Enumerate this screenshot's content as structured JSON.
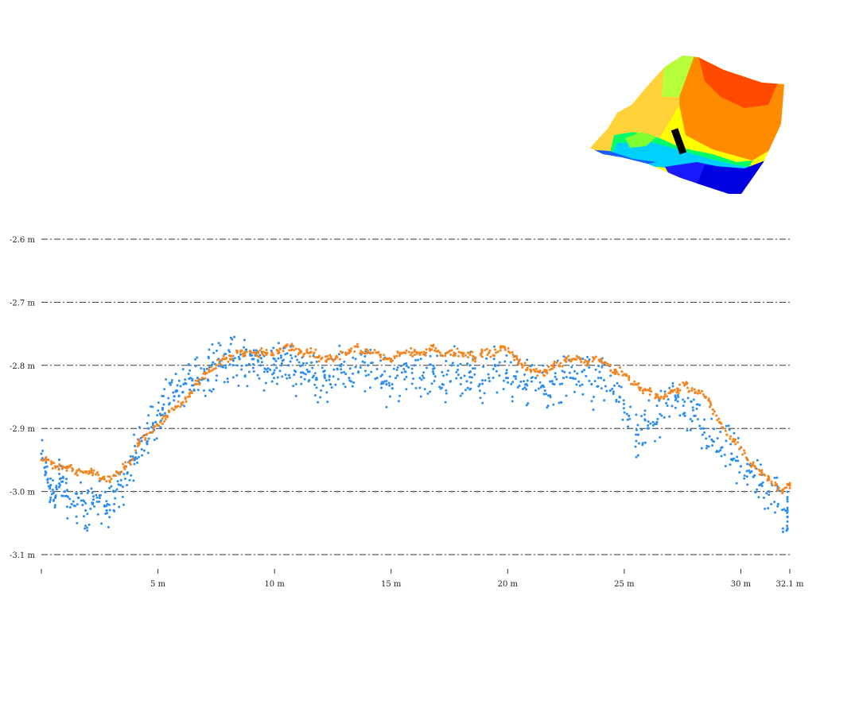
{
  "chart_data": {
    "type": "scatter",
    "x_unit": "m",
    "y_unit": "m",
    "xlim": [
      0,
      32.1
    ],
    "ylim": [
      -3.1,
      -2.6
    ],
    "x_ticks": [
      {
        "value": 5,
        "label": "5 m"
      },
      {
        "value": 10,
        "label": "10 m"
      },
      {
        "value": 15,
        "label": "15 m"
      },
      {
        "value": 20,
        "label": "20 m"
      },
      {
        "value": 25,
        "label": "25 m"
      },
      {
        "value": 30,
        "label": "30 m"
      },
      {
        "value": 32.1,
        "label": "32.1 m"
      }
    ],
    "y_ticks": [
      {
        "value": -2.6,
        "label": "-2.6 m"
      },
      {
        "value": -2.7,
        "label": "-2.7 m"
      },
      {
        "value": -2.8,
        "label": "-2.8 m"
      },
      {
        "value": -2.9,
        "label": "-2.9 m"
      },
      {
        "value": -3.0,
        "label": "-3.0 m"
      },
      {
        "value": -3.1,
        "label": "-3.1 m"
      }
    ],
    "grid": true,
    "series": [
      {
        "color": "#2a8ef0",
        "x": [
          0.0,
          0.2,
          0.4,
          0.6,
          0.8,
          1.0,
          1.3,
          1.6,
          1.9,
          2.2,
          2.5,
          2.8,
          3.1,
          3.4,
          3.7,
          4.0,
          4.3,
          4.6,
          4.9,
          5.2,
          5.5,
          5.8,
          6.1,
          6.4,
          6.7,
          7.0,
          7.3,
          7.6,
          7.9,
          8.2,
          8.5,
          8.8,
          9.1,
          9.4,
          9.7,
          10.0,
          10.3,
          10.6,
          10.9,
          11.2,
          11.5,
          11.8,
          12.1,
          12.4,
          12.8,
          13.2,
          13.6,
          14.0,
          14.4,
          14.8,
          15.2,
          15.6,
          16.0,
          16.4,
          16.8,
          17.2,
          17.6,
          18.0,
          18.4,
          18.8,
          19.2,
          19.6,
          20.0,
          20.4,
          20.8,
          21.2,
          21.6,
          22.0,
          22.4,
          22.8,
          23.2,
          23.6,
          24.0,
          24.4,
          24.8,
          25.2,
          25.6,
          26.0,
          26.4,
          26.8,
          27.2,
          27.6,
          28.0,
          28.4,
          28.8,
          29.2,
          29.6,
          30.0,
          30.4,
          30.8,
          31.2,
          31.6,
          32.0
        ],
        "y": [
          -2.94,
          -2.97,
          -2.99,
          -3.01,
          -2.98,
          -3.0,
          -3.02,
          -3.01,
          -3.03,
          -3.02,
          -3.01,
          -3.03,
          -3.0,
          -2.99,
          -2.97,
          -2.95,
          -2.92,
          -2.9,
          -2.89,
          -2.87,
          -2.86,
          -2.84,
          -2.83,
          -2.82,
          -2.82,
          -2.81,
          -2.8,
          -2.79,
          -2.8,
          -2.79,
          -2.79,
          -2.8,
          -2.79,
          -2.8,
          -2.81,
          -2.79,
          -2.8,
          -2.8,
          -2.81,
          -2.8,
          -2.81,
          -2.82,
          -2.81,
          -2.83,
          -2.8,
          -2.82,
          -2.81,
          -2.8,
          -2.82,
          -2.83,
          -2.82,
          -2.81,
          -2.8,
          -2.82,
          -2.81,
          -2.83,
          -2.8,
          -2.82,
          -2.81,
          -2.83,
          -2.82,
          -2.8,
          -2.82,
          -2.81,
          -2.83,
          -2.82,
          -2.84,
          -2.83,
          -2.82,
          -2.82,
          -2.81,
          -2.83,
          -2.82,
          -2.84,
          -2.85,
          -2.88,
          -2.91,
          -2.9,
          -2.89,
          -2.86,
          -2.85,
          -2.88,
          -2.88,
          -2.9,
          -2.92,
          -2.93,
          -2.94,
          -2.96,
          -2.97,
          -2.99,
          -3.0,
          -3.02,
          -3.04
        ]
      },
      {
        "color": "#f5841f",
        "x": [
          0.0,
          0.3,
          0.6,
          0.9,
          1.2,
          1.5,
          1.8,
          2.1,
          2.4,
          2.7,
          3.0,
          3.3,
          3.6,
          3.9,
          4.2,
          4.5,
          4.8,
          5.1,
          5.4,
          5.7,
          6.0,
          6.3,
          6.6,
          6.9,
          7.2,
          7.5,
          7.8,
          8.1,
          8.4,
          8.7,
          9.0,
          9.3,
          9.6,
          9.9,
          10.2,
          10.5,
          10.8,
          11.1,
          11.4,
          11.7,
          12.0,
          12.3,
          12.6,
          12.9,
          13.2,
          13.5,
          13.8,
          14.1,
          14.4,
          14.7,
          15.0,
          15.3,
          15.6,
          15.9,
          16.2,
          16.5,
          16.8,
          17.1,
          17.4,
          17.7,
          18.0,
          18.3,
          18.6,
          18.9,
          19.2,
          19.5,
          19.8,
          20.1,
          20.4,
          20.7,
          21.0,
          21.3,
          21.6,
          21.9,
          22.2,
          22.5,
          22.8,
          23.1,
          23.4,
          23.7,
          24.0,
          24.3,
          24.6,
          24.9,
          25.2,
          25.5,
          25.8,
          26.1,
          26.4,
          26.7,
          27.0,
          27.3,
          27.6,
          27.9,
          28.2,
          28.5,
          28.8,
          29.1,
          29.4,
          29.7,
          30.0,
          30.3,
          30.6,
          30.9,
          31.2,
          31.5,
          31.8,
          32.1
        ],
        "y": [
          -2.95,
          -2.95,
          -2.96,
          -2.96,
          -2.96,
          -2.97,
          -2.97,
          -2.97,
          -2.97,
          -2.98,
          -2.98,
          -2.97,
          -2.96,
          -2.95,
          -2.92,
          -2.91,
          -2.9,
          -2.89,
          -2.88,
          -2.87,
          -2.86,
          -2.85,
          -2.83,
          -2.82,
          -2.81,
          -2.8,
          -2.79,
          -2.79,
          -2.78,
          -2.78,
          -2.78,
          -2.78,
          -2.78,
          -2.78,
          -2.78,
          -2.77,
          -2.77,
          -2.78,
          -2.78,
          -2.78,
          -2.79,
          -2.79,
          -2.79,
          -2.78,
          -2.78,
          -2.77,
          -2.78,
          -2.78,
          -2.78,
          -2.79,
          -2.79,
          -2.78,
          -2.78,
          -2.78,
          -2.78,
          -2.78,
          -2.77,
          -2.78,
          -2.78,
          -2.78,
          -2.78,
          -2.78,
          -2.79,
          -2.78,
          -2.78,
          -2.78,
          -2.77,
          -2.78,
          -2.79,
          -2.8,
          -2.81,
          -2.81,
          -2.81,
          -2.8,
          -2.8,
          -2.79,
          -2.79,
          -2.79,
          -2.8,
          -2.79,
          -2.79,
          -2.8,
          -2.81,
          -2.81,
          -2.82,
          -2.83,
          -2.84,
          -2.84,
          -2.85,
          -2.85,
          -2.84,
          -2.84,
          -2.83,
          -2.84,
          -2.84,
          -2.85,
          -2.87,
          -2.89,
          -2.91,
          -2.92,
          -2.93,
          -2.95,
          -2.96,
          -2.97,
          -2.98,
          -2.99,
          -3.0,
          -2.99
        ]
      }
    ]
  },
  "thumbnail": {
    "colors": [
      "#0000ff",
      "#1e90ff",
      "#00e5ff",
      "#00ff7f",
      "#7fff00",
      "#ffff00",
      "#ffb000",
      "#ff6a00",
      "#ff3300"
    ],
    "marker_color": "#000000"
  }
}
